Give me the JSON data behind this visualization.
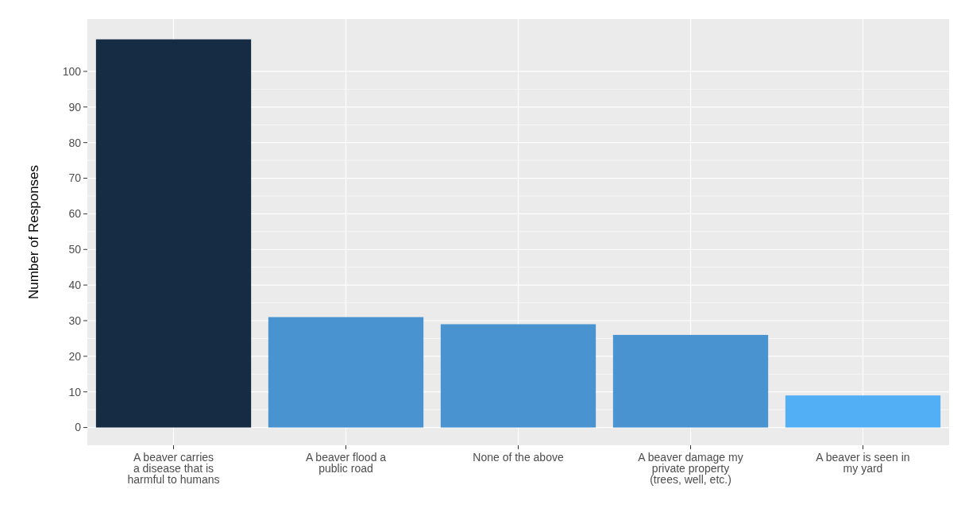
{
  "chart_data": {
    "type": "bar",
    "ylabel": "Number of Responses",
    "categories": [
      "A beaver carries\na disease that is\nharmful to humans",
      "A beaver flood a\npublic road",
      "None of the above",
      "A beaver damage my\nprivate property\n(trees, well, etc.)",
      "A beaver is seen in\nmy yard"
    ],
    "values": [
      109,
      31,
      29,
      26,
      9
    ],
    "colors": [
      "#162b44",
      "#4893d0",
      "#4893d0",
      "#4893d0",
      "#53aff5"
    ],
    "ylim": [
      -5,
      114.7
    ],
    "yticks": [
      0,
      10,
      20,
      30,
      40,
      50,
      60,
      70,
      80,
      90,
      100
    ],
    "grid": true
  }
}
